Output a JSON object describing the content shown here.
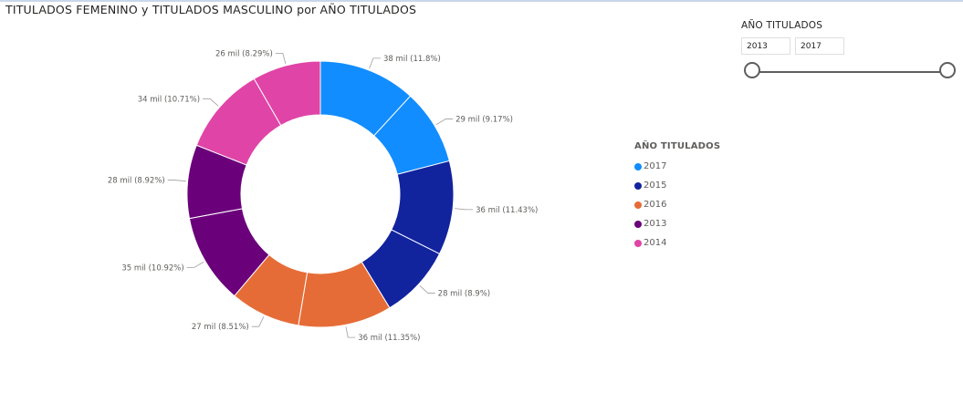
{
  "chart_data": {
    "type": "pie",
    "donut": true,
    "title": "TITULADOS FEMENINO y TITULADOS MASCULINO por AÑO TITULADOS",
    "legend": {
      "title": "AÑO TITULADOS",
      "placement": "right",
      "entries": [
        "2017",
        "2015",
        "2016",
        "2013",
        "2014"
      ]
    },
    "slices": [
      {
        "year": "2017",
        "value": 38,
        "percent": 11.8,
        "label": "38 mil (11.8%)"
      },
      {
        "year": "2017",
        "value": 29,
        "percent": 9.17,
        "label": "29 mil (9.17%)"
      },
      {
        "year": "2015",
        "value": 36,
        "percent": 11.43,
        "label": "36 mil (11.43%)"
      },
      {
        "year": "2015",
        "value": 28,
        "percent": 8.9,
        "label": "28 mil (8.9%)"
      },
      {
        "year": "2016",
        "value": 36,
        "percent": 11.35,
        "label": "36 mil (11.35%)"
      },
      {
        "year": "2016",
        "value": 27,
        "percent": 8.51,
        "label": "27 mil (8.51%)"
      },
      {
        "year": "2013",
        "value": 35,
        "percent": 10.92,
        "label": "35 mil (10.92%)"
      },
      {
        "year": "2013",
        "value": 28,
        "percent": 8.92,
        "label": "28 mil (8.92%)"
      },
      {
        "year": "2014",
        "value": 34,
        "percent": 10.71,
        "label": "34 mil (10.71%)"
      },
      {
        "year": "2014",
        "value": 26,
        "percent": 8.29,
        "label": "26 mil (8.29%)"
      }
    ]
  },
  "colors": {
    "2017": "#118dff",
    "2015": "#12239e",
    "2016": "#e66c37",
    "2013": "#6b007b",
    "2014": "#e044a7"
  },
  "slicer": {
    "title": "AÑO TITULADOS",
    "min": "2013",
    "max": "2017"
  }
}
